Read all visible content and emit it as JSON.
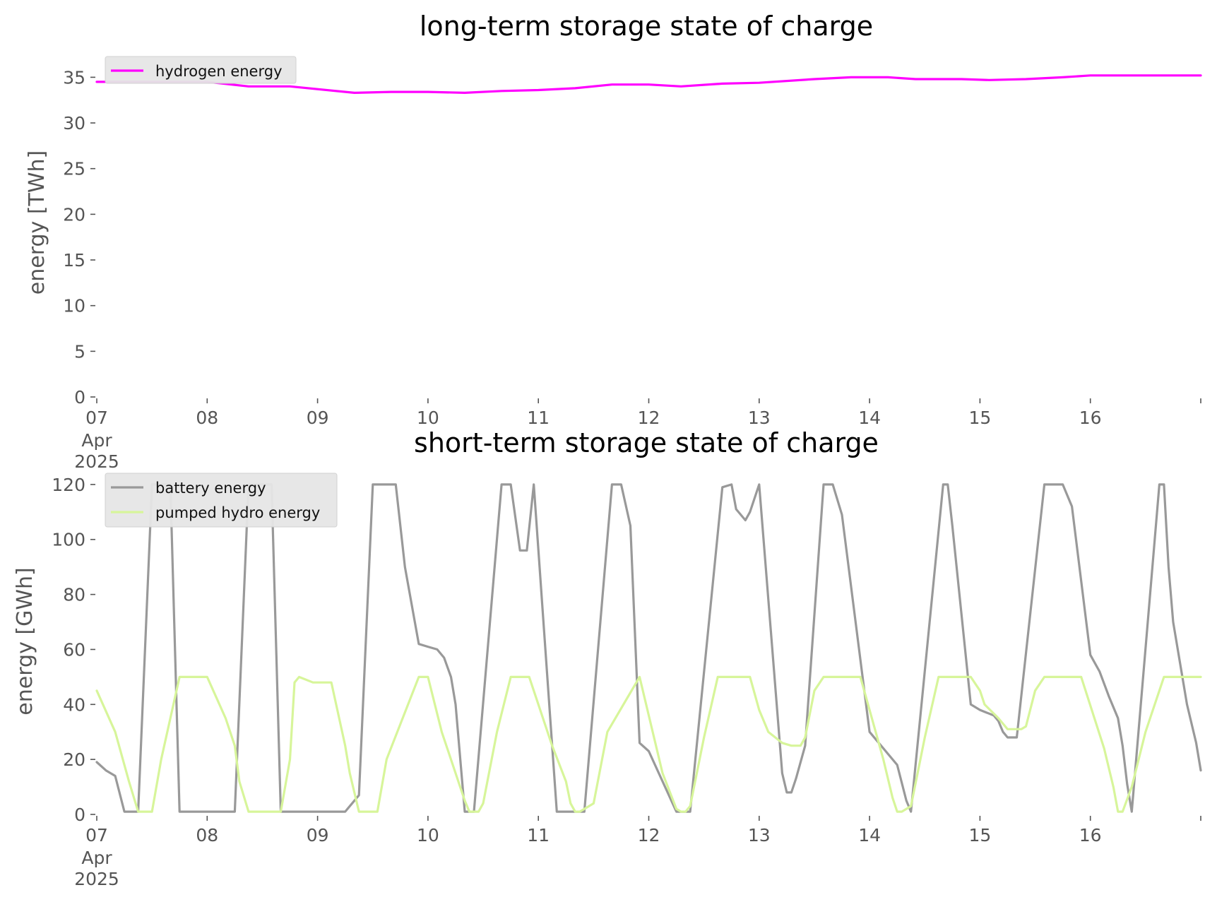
{
  "chart_data": [
    {
      "type": "line",
      "title": "long-term storage state of charge",
      "xlabel": "",
      "ylabel": "energy [TWh]",
      "ylim": [
        0,
        36.5
      ],
      "xlim": [
        "2025-04-07T00:00",
        "2025-04-17T00:00"
      ],
      "yticks": [
        "0",
        "5",
        "10",
        "15",
        "20",
        "25",
        "30",
        "35"
      ],
      "xticks": [
        "07\nApr\n2025",
        "08",
        "09",
        "10",
        "11",
        "12",
        "13",
        "14",
        "15",
        "16"
      ],
      "grid": false,
      "legend": "top-left",
      "series": [
        {
          "name": "hydrogen energy",
          "color": "#ff00ff",
          "x": [
            "2025-04-07T00:00",
            "2025-04-07T12:00",
            "2025-04-08T00:00",
            "2025-04-08T09:00",
            "2025-04-08T18:00",
            "2025-04-09T08:00",
            "2025-04-09T16:00",
            "2025-04-10T00:00",
            "2025-04-10T08:00",
            "2025-04-10T16:00",
            "2025-04-11T00:00",
            "2025-04-11T08:00",
            "2025-04-11T16:00",
            "2025-04-12T00:00",
            "2025-04-12T07:00",
            "2025-04-12T16:00",
            "2025-04-13T00:00",
            "2025-04-13T12:00",
            "2025-04-13T20:00",
            "2025-04-14T04:00",
            "2025-04-14T10:00",
            "2025-04-14T20:00",
            "2025-04-15T02:00",
            "2025-04-15T10:00",
            "2025-04-15T18:00",
            "2025-04-16T00:00",
            "2025-04-16T08:00",
            "2025-04-16T16:00",
            "2025-04-17T00:00"
          ],
          "values": [
            34.5,
            34.5,
            34.5,
            34.0,
            34.0,
            33.3,
            33.4,
            33.4,
            33.3,
            33.5,
            33.6,
            33.8,
            34.2,
            34.2,
            34.0,
            34.3,
            34.4,
            34.8,
            35.0,
            35.0,
            34.8,
            34.8,
            34.7,
            34.8,
            35.0,
            35.2,
            35.2,
            35.2,
            35.2
          ]
        }
      ]
    },
    {
      "type": "line",
      "title": "short-term storage state of charge",
      "xlabel": "",
      "ylabel": "energy [GWh]",
      "ylim": [
        0,
        121
      ],
      "xlim": [
        "2025-04-07T00:00",
        "2025-04-17T00:00"
      ],
      "yticks": [
        "0",
        "20",
        "40",
        "60",
        "80",
        "100",
        "120"
      ],
      "xticks": [
        "07\nApr\n2025",
        "08",
        "09",
        "10",
        "11",
        "12",
        "13",
        "14",
        "15",
        "16"
      ],
      "grid": false,
      "legend": "top-left",
      "series": [
        {
          "name": "battery energy",
          "color": "#999999",
          "x": [
            "2025-04-07T00:00",
            "2025-04-07T02:00",
            "2025-04-07T04:00",
            "2025-04-07T06:00",
            "2025-04-07T08:00",
            "2025-04-07T09:00",
            "2025-04-07T12:00",
            "2025-04-07T16:00",
            "2025-04-07T18:00",
            "2025-04-08T00:00",
            "2025-04-08T06:00",
            "2025-04-08T09:00",
            "2025-04-08T14:00",
            "2025-04-08T16:00",
            "2025-04-08T20:00",
            "2025-04-09T00:00",
            "2025-04-09T06:00",
            "2025-04-09T09:00",
            "2025-04-09T12:00",
            "2025-04-09T17:00",
            "2025-04-09T19:00",
            "2025-04-09T22:00",
            "2025-04-10T00:00",
            "2025-04-10T02:00",
            "2025-04-10T03:30",
            "2025-04-10T05:00",
            "2025-04-10T06:00",
            "2025-04-10T08:00",
            "2025-04-10T10:00",
            "2025-04-10T16:00",
            "2025-04-10T18:00",
            "2025-04-10T20:00",
            "2025-04-10T21:30",
            "2025-04-10T23:00",
            "2025-04-11T04:00",
            "2025-04-11T07:00",
            "2025-04-11T09:00",
            "2025-04-11T10:00",
            "2025-04-11T16:00",
            "2025-04-11T18:00",
            "2025-04-11T20:00",
            "2025-04-11T22:00",
            "2025-04-12T00:00",
            "2025-04-12T06:00",
            "2025-04-12T08:00",
            "2025-04-12T09:00",
            "2025-04-12T16:00",
            "2025-04-12T18:00",
            "2025-04-12T19:00",
            "2025-04-12T21:00",
            "2025-04-12T22:00",
            "2025-04-13T00:00",
            "2025-04-13T05:00",
            "2025-04-13T06:00",
            "2025-04-13T07:00",
            "2025-04-13T08:00",
            "2025-04-13T10:00",
            "2025-04-13T14:00",
            "2025-04-13T16:00",
            "2025-04-13T18:00",
            "2025-04-14T00:00",
            "2025-04-14T06:00",
            "2025-04-14T08:00",
            "2025-04-14T09:00",
            "2025-04-14T16:00",
            "2025-04-14T17:00",
            "2025-04-14T18:00",
            "2025-04-14T22:00",
            "2025-04-15T00:00",
            "2025-04-15T03:00",
            "2025-04-15T04:00",
            "2025-04-15T05:00",
            "2025-04-15T06:00",
            "2025-04-15T08:00",
            "2025-04-15T14:00",
            "2025-04-15T16:00",
            "2025-04-15T18:00",
            "2025-04-15T20:00",
            "2025-04-16T00:00",
            "2025-04-16T02:00",
            "2025-04-16T04:00",
            "2025-04-16T06:00",
            "2025-04-16T07:00",
            "2025-04-16T08:00",
            "2025-04-16T09:00",
            "2025-04-16T15:00",
            "2025-04-16T16:00",
            "2025-04-16T17:00",
            "2025-04-16T18:00",
            "2025-04-16T21:00",
            "2025-04-16T23:00",
            "2025-04-17T00:00"
          ],
          "values": [
            19,
            16,
            14,
            1,
            1,
            1,
            120,
            120,
            1,
            1,
            1,
            120,
            120,
            1,
            1,
            1,
            1,
            7,
            120,
            120,
            90,
            62,
            61,
            60,
            57,
            50,
            40,
            1,
            1,
            120,
            120,
            96,
            96,
            120,
            1,
            1,
            1,
            1,
            120,
            120,
            105,
            26,
            23,
            1,
            1,
            1,
            119,
            120,
            111,
            107,
            110,
            120,
            15,
            8,
            8,
            13,
            25,
            120,
            120,
            109,
            30,
            18,
            5,
            1,
            120,
            120,
            105,
            40,
            38,
            36,
            34,
            30,
            28,
            28,
            120,
            120,
            120,
            112,
            58,
            52,
            43,
            35,
            25,
            11,
            1,
            120,
            120,
            90,
            70,
            40,
            26,
            16
          ]
        },
        {
          "name": "pumped hydro energy",
          "color": "#d7f59a",
          "x": [
            "2025-04-07T00:00",
            "2025-04-07T04:00",
            "2025-04-07T07:00",
            "2025-04-07T09:00",
            "2025-04-07T12:00",
            "2025-04-07T14:00",
            "2025-04-07T18:00",
            "2025-04-08T00:00",
            "2025-04-08T04:00",
            "2025-04-08T06:00",
            "2025-04-08T07:00",
            "2025-04-08T09:00",
            "2025-04-08T16:00",
            "2025-04-08T18:00",
            "2025-04-08T19:00",
            "2025-04-08T20:00",
            "2025-04-08T23:00",
            "2025-04-09T03:00",
            "2025-04-09T06:00",
            "2025-04-09T07:00",
            "2025-04-09T09:00",
            "2025-04-09T13:00",
            "2025-04-09T15:00",
            "2025-04-09T22:00",
            "2025-04-10T00:00",
            "2025-04-10T03:00",
            "2025-04-10T06:00",
            "2025-04-10T08:00",
            "2025-04-10T09:00",
            "2025-04-10T11:00",
            "2025-04-10T12:00",
            "2025-04-10T15:00",
            "2025-04-10T18:00",
            "2025-04-10T22:00",
            "2025-04-11T03:00",
            "2025-04-11T06:00",
            "2025-04-11T07:00",
            "2025-04-11T08:00",
            "2025-04-11T09:00",
            "2025-04-11T12:00",
            "2025-04-11T15:00",
            "2025-04-11T22:00",
            "2025-04-12T03:00",
            "2025-04-12T06:00",
            "2025-04-12T07:00",
            "2025-04-12T08:00",
            "2025-04-12T09:00",
            "2025-04-12T12:00",
            "2025-04-12T15:00",
            "2025-04-12T22:00",
            "2025-04-13T00:00",
            "2025-04-13T02:00",
            "2025-04-13T05:00",
            "2025-04-13T07:00",
            "2025-04-13T09:00",
            "2025-04-13T10:00",
            "2025-04-13T12:00",
            "2025-04-13T14:00",
            "2025-04-13T22:00",
            "2025-04-14T00:00",
            "2025-04-14T03:00",
            "2025-04-14T05:00",
            "2025-04-14T06:00",
            "2025-04-14T07:00",
            "2025-04-14T09:00",
            "2025-04-14T12:00",
            "2025-04-14T15:00",
            "2025-04-14T22:00",
            "2025-04-15T00:00",
            "2025-04-15T01:00",
            "2025-04-15T04:00",
            "2025-04-15T06:00",
            "2025-04-15T07:00",
            "2025-04-15T09:00",
            "2025-04-15T10:00",
            "2025-04-15T12:00",
            "2025-04-15T14:00",
            "2025-04-15T22:00",
            "2025-04-16T03:00",
            "2025-04-16T05:00",
            "2025-04-16T06:00",
            "2025-04-16T07:00",
            "2025-04-16T09:00",
            "2025-04-16T12:00",
            "2025-04-16T16:00",
            "2025-04-17T00:00"
          ],
          "values": [
            45,
            30,
            12,
            1,
            1,
            20,
            50,
            50,
            35,
            25,
            12,
            1,
            1,
            20,
            48,
            50,
            48,
            48,
            25,
            15,
            1,
            1,
            20,
            50,
            50,
            30,
            15,
            5,
            1,
            1,
            4,
            30,
            50,
            50,
            25,
            12,
            4,
            1,
            1,
            4,
            30,
            50,
            15,
            2,
            1,
            1,
            3,
            28,
            50,
            50,
            38,
            30,
            26,
            25,
            25,
            28,
            45,
            50,
            50,
            38,
            20,
            6,
            1,
            1,
            3,
            28,
            50,
            50,
            45,
            40,
            35,
            31,
            31,
            31,
            32,
            45,
            50,
            50,
            24,
            10,
            1,
            1,
            10,
            30,
            50,
            50
          ]
        }
      ]
    }
  ]
}
